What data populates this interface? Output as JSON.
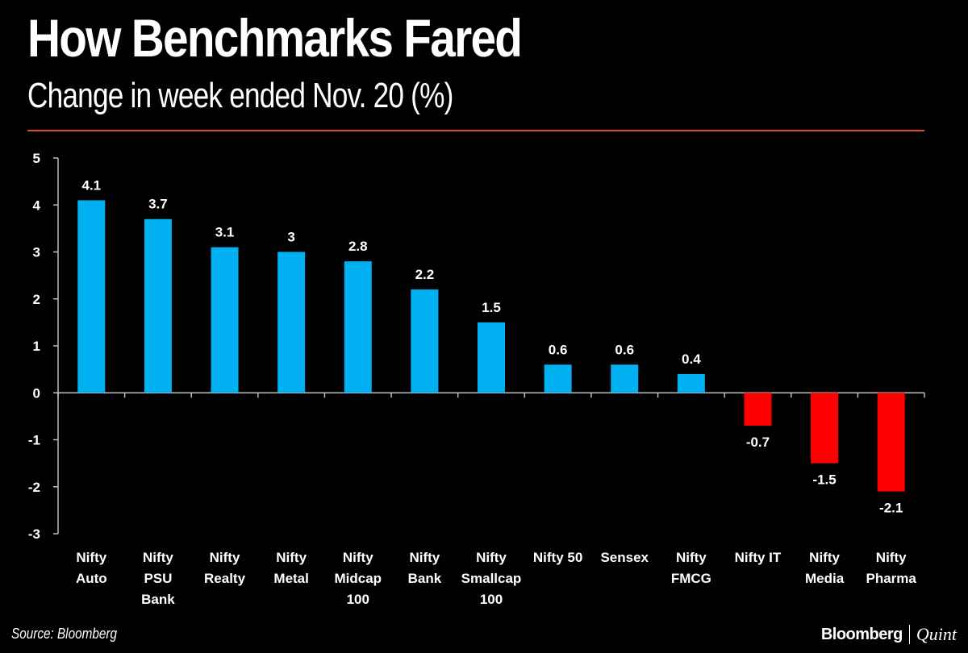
{
  "header": {
    "title": "How Benchmarks Fared",
    "subtitle": "Change in week ended Nov. 20 (%)"
  },
  "footer": {
    "source": "Source: Bloomberg",
    "brand_main": "Bloomberg",
    "brand_sub": "Quint"
  },
  "colors": {
    "positive": "#00b0f0",
    "negative": "#ff0000",
    "accent_rule": "#e0492f",
    "background": "#000000"
  },
  "chart_data": {
    "type": "bar",
    "categories": [
      [
        "Nifty",
        "Auto"
      ],
      [
        "Nifty",
        "PSU",
        "Bank"
      ],
      [
        "Nifty",
        "Realty"
      ],
      [
        "Nifty",
        "Metal"
      ],
      [
        "Nifty",
        "Midcap",
        "100"
      ],
      [
        "Nifty",
        "Bank"
      ],
      [
        "Nifty",
        "Smallcap",
        "100"
      ],
      [
        "Nifty 50"
      ],
      [
        "Sensex"
      ],
      [
        "Nifty",
        "FMCG"
      ],
      [
        "Nifty IT"
      ],
      [
        "Nifty",
        "Media"
      ],
      [
        "Nifty",
        "Pharma"
      ]
    ],
    "values": [
      4.1,
      3.7,
      3.1,
      3,
      2.8,
      2.2,
      1.5,
      0.6,
      0.6,
      0.4,
      -0.7,
      -1.5,
      -2.1
    ],
    "value_labels": [
      "4.1",
      "3.7",
      "3.1",
      "3",
      "2.8",
      "2.2",
      "1.5",
      "0.6",
      "0.6",
      "0.4",
      "-0.7",
      "-1.5",
      "-2.1"
    ],
    "yticks": [
      "5",
      "4",
      "3",
      "2",
      "1",
      "0",
      "-1",
      "-2",
      "-3"
    ],
    "ylim": [
      -3,
      5
    ],
    "grid": false,
    "legend": false
  }
}
